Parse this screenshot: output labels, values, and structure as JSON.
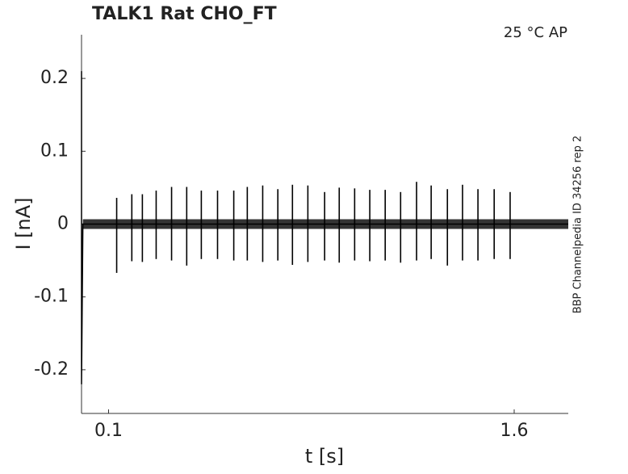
{
  "chart_data": {
    "type": "line",
    "title": "TALK1  Rat  CHO_FT",
    "subtitle": "25 °C  AP",
    "annotation": "BBP Channelpedia ID 34256 rep 2",
    "xlabel": "t [s]",
    "ylabel": "I [nA]",
    "color": "#000000",
    "xlim": [
      0,
      1.8
    ],
    "ylim": [
      -0.26,
      0.26
    ],
    "xticks": [
      0.1,
      1.6
    ],
    "yticks": [
      -0.2,
      -0.1,
      0,
      0.1,
      0.2
    ],
    "x": [
      0,
      0,
      0.005,
      1.8
    ],
    "values": [
      0.21,
      -0.22,
      0,
      0
    ],
    "spikes": {
      "t": [
        0.13,
        0.186,
        0.225,
        0.276,
        0.333,
        0.389,
        0.443,
        0.503,
        0.563,
        0.613,
        0.67,
        0.726,
        0.78,
        0.837,
        0.899,
        0.953,
        1.01,
        1.066,
        1.123,
        1.18,
        1.239,
        1.293,
        1.353,
        1.409,
        1.466,
        1.526,
        1.585
      ],
      "peak": [
        0.036,
        0.041,
        0.041,
        0.046,
        0.051,
        0.051,
        0.046,
        0.046,
        0.046,
        0.051,
        0.053,
        0.048,
        0.054,
        0.053,
        0.044,
        0.05,
        0.049,
        0.047,
        0.047,
        0.044,
        0.058,
        0.053,
        0.048,
        0.054,
        0.048,
        0.048,
        0.044
      ],
      "trough": [
        -0.067,
        -0.051,
        -0.052,
        -0.048,
        -0.05,
        -0.057,
        -0.048,
        -0.048,
        -0.05,
        -0.05,
        -0.052,
        -0.05,
        -0.056,
        -0.052,
        -0.05,
        -0.053,
        -0.05,
        -0.051,
        -0.05,
        -0.053,
        -0.05,
        -0.048,
        -0.057,
        -0.05,
        -0.05,
        -0.048,
        -0.048
      ]
    }
  }
}
